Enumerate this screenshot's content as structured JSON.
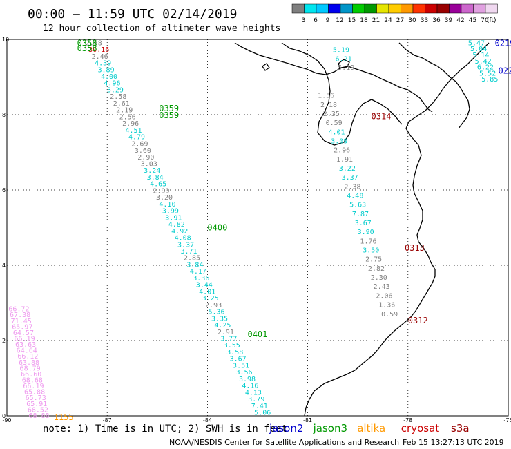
{
  "header": {
    "title": "00:00 – 11:59 UTC 02/14/2019",
    "subtitle": "12 hour collection of altimeter wave heights"
  },
  "legend": {
    "colors": [
      "#7f7f7f",
      "#00e5ee",
      "#00c8ff",
      "#0000ee",
      "#0095c8",
      "#00cc00",
      "#009900",
      "#e5e500",
      "#ffcc00",
      "#ff9900",
      "#ff3300",
      "#cc0000",
      "#990000",
      "#990099",
      "#cc66cc",
      "#e0a0e0",
      "#f0d8f0"
    ],
    "labels": [
      "3",
      "6",
      "9",
      "12",
      "15",
      "18",
      "21",
      "24",
      "27",
      "30",
      "33",
      "36",
      "39",
      "42",
      "45",
      "70",
      "(ft)"
    ]
  },
  "axes": {
    "x_ticks": [
      "-90",
      "-87",
      "-84",
      "-81",
      "-78",
      "-75"
    ],
    "y_ticks": [
      "10",
      "8",
      "6",
      "4",
      "2",
      "0"
    ]
  },
  "footer": {
    "note": "note: 1) Time is in UTC; 2) SWH is in feet",
    "satellites": [
      {
        "name": "jason2",
        "color": "#0000cc"
      },
      {
        "name": "jason3",
        "color": "#009900"
      },
      {
        "name": "altika",
        "color": "#ff9900"
      },
      {
        "name": "cryosat",
        "color": "#cc0000"
      },
      {
        "name": "s3a",
        "color": "#990000"
      }
    ],
    "credit": "NOAA/NESDIS Center for Satellite Applications and Research",
    "timestamp": "Feb 15 13:27:13 UTC 2019"
  },
  "track_labels": [
    {
      "text": "0358",
      "color": "#009900",
      "lon": -87.9,
      "lat": 9.92
    },
    {
      "text": "0358",
      "color": "#009900",
      "lon": -87.9,
      "lat": 9.78
    },
    {
      "text": "0359",
      "color": "#009900",
      "lon": -85.45,
      "lat": 8.18
    },
    {
      "text": "0359",
      "color": "#009900",
      "lon": -85.45,
      "lat": 8.0
    },
    {
      "text": "0400",
      "color": "#009900",
      "lon": -84.0,
      "lat": 5.02
    },
    {
      "text": "0401",
      "color": "#009900",
      "lon": -82.8,
      "lat": 2.18
    },
    {
      "text": "0219",
      "color": "#0000cc",
      "lon": -75.4,
      "lat": 9.92
    },
    {
      "text": "0220",
      "color": "#0000cc",
      "lon": -75.3,
      "lat": 9.18
    },
    {
      "text": "0314",
      "color": "#990000",
      "lon": -79.1,
      "lat": 7.97
    },
    {
      "text": "0313",
      "color": "#990000",
      "lon": -78.1,
      "lat": 4.48
    },
    {
      "text": "0312",
      "color": "#990000",
      "lon": -78.0,
      "lat": 2.55
    },
    {
      "text": "1155",
      "color": "#ff9900",
      "lon": -88.6,
      "lat": -0.02
    }
  ],
  "swh_groups": [
    {
      "values": [
        "2.88",
        "30.16",
        "2.46",
        "4.39",
        "3.89",
        "4.00",
        "4.96",
        "3.29",
        "2.58",
        "2.61",
        "2.19",
        "2.56",
        "2.96",
        "4.51",
        "4.79",
        "2.69",
        "3.60",
        "2.90",
        "3.03",
        "3.24",
        "3.84",
        "4.65",
        "2.99",
        "3.20",
        "4.10",
        "3.99",
        "3.91",
        "4.82",
        "4.92",
        "4.08",
        "3.37",
        "3.71",
        "2.85",
        "3.84",
        "4.17",
        "3.36",
        "3.44",
        "4.01",
        "3.25",
        "2.93",
        "5.36",
        "3.35",
        "4.25",
        "2.91",
        "3.77",
        "3.55",
        "3.58",
        "3.67",
        "3.51",
        "3.56",
        "3.98",
        "4.16",
        "4.13",
        "3.79",
        "7.41",
        "5.06"
      ],
      "colors": [
        "#808080",
        "#cc0000",
        "#808080",
        "#00cccc",
        "#00cccc",
        "#00cccc",
        "#00cccc",
        "#00cccc",
        "#808080",
        "#808080",
        "#808080",
        "#808080",
        "#808080",
        "#00cccc",
        "#00cccc",
        "#808080",
        "#808080",
        "#808080",
        "#808080",
        "#00cccc",
        "#00cccc",
        "#00cccc",
        "#808080",
        "#808080",
        "#00cccc",
        "#00cccc",
        "#00cccc",
        "#00cccc",
        "#00cccc",
        "#00cccc",
        "#00cccc",
        "#00cccc",
        "#808080",
        "#00cccc",
        "#00cccc",
        "#00cccc",
        "#00cccc",
        "#00cccc",
        "#00cccc",
        "#808080",
        "#00cccc",
        "#00cccc",
        "#00cccc",
        "#808080",
        "#00cccc",
        "#00cccc",
        "#00cccc",
        "#00cccc",
        "#00cccc",
        "#00cccc",
        "#00cccc",
        "#00cccc",
        "#00cccc",
        "#00cccc",
        "#00cccc",
        "#00cccc"
      ],
      "lon_start": -87.65,
      "lat_start": 9.92,
      "lon_end": -82.6,
      "lat_end": 0.1
    },
    {
      "values": [
        "1.56",
        "2.18",
        "2.35",
        "0.59",
        "4.01",
        "3.09",
        "2.96",
        "1.91",
        "3.22",
        "3.37",
        "2.38",
        "4.48",
        "5.63",
        "7.87",
        "3.67",
        "3.90",
        "1.76",
        "3.50",
        "2.75",
        "2.82",
        "2.30",
        "2.43",
        "2.06",
        "1.36",
        "0.59"
      ],
      "colors": [
        "#808080",
        "#808080",
        "#808080",
        "#808080",
        "#00cccc",
        "#00cccc",
        "#808080",
        "#808080",
        "#00cccc",
        "#00cccc",
        "#808080",
        "#00cccc",
        "#00cccc",
        "#00cccc",
        "#00cccc",
        "#00cccc",
        "#808080",
        "#00cccc",
        "#808080",
        "#808080",
        "#808080",
        "#808080",
        "#808080",
        "#808080",
        "#808080"
      ],
      "lon_start": -80.7,
      "lat_start": 8.52,
      "lon_end": -78.8,
      "lat_end": 2.72
    },
    {
      "values": [
        "5.19",
        "6.21",
        "5.19"
      ],
      "colors": [
        "#00cccc",
        "#00cccc",
        "#808080"
      ],
      "lon_start": -80.25,
      "lat_start": 9.73,
      "lon_end": -80.1,
      "lat_end": 9.27
    },
    {
      "values": [
        "5.47",
        "5.04",
        "5.14",
        "5.42",
        "6.22",
        "5.52",
        "5.85"
      ],
      "colors": [
        "#00cccc",
        "#00cccc",
        "#00cccc",
        "#00cccc",
        "#00cccc",
        "#00cccc",
        "#00cccc"
      ],
      "lon_start": -76.2,
      "lat_start": 9.92,
      "lon_end": -75.8,
      "lat_end": 8.95
    },
    {
      "values": [
        "66.72",
        "67.38",
        "71.45",
        "65.97",
        "64.57",
        "66.19",
        "63.63",
        "64.64",
        "66.12",
        "63.88",
        "68.79",
        "66.60",
        "68.68",
        "66.19",
        "65.88",
        "65.73",
        "65.91",
        "68.52",
        "68.88"
      ],
      "colors": [
        "#ee99ee",
        "#ee99ee",
        "#ee99ee",
        "#ee99ee",
        "#ee99ee",
        "#ee99ee",
        "#ee99ee",
        "#ee99ee",
        "#ee99ee",
        "#ee99ee",
        "#ee99ee",
        "#ee99ee",
        "#ee99ee",
        "#ee99ee",
        "#ee99ee",
        "#ee99ee",
        "#ee99ee",
        "#ee99ee",
        "#ee99ee"
      ],
      "lon_start": -89.95,
      "lat_start": 2.85,
      "lon_end": -89.35,
      "lat_end": 0.02
    }
  ]
}
